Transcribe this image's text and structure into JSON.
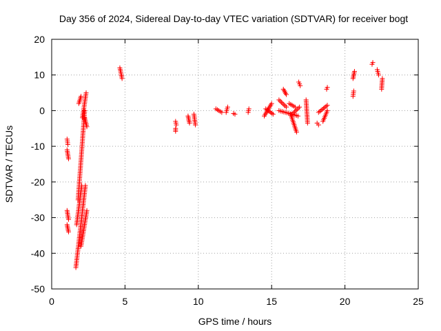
{
  "chart_data": {
    "type": "scatter",
    "title": "Day 356 of 2024, Sidereal Day-to-day VTEC variation (SDTVAR) for receiver bogt",
    "xlabel": "GPS time / hours",
    "ylabel": "SDTVAR / TECUs",
    "xlim": [
      0,
      25
    ],
    "ylim": [
      -50,
      20
    ],
    "xticks": [
      0,
      5,
      10,
      15,
      20,
      25
    ],
    "yticks": [
      -50,
      -40,
      -30,
      -20,
      -10,
      0,
      10,
      20
    ],
    "grid": true,
    "marker": "+",
    "color": "#ff0000",
    "segments": [
      {
        "x": [
          1.05,
          1.15
        ],
        "y": [
          -32.0,
          -34.0
        ]
      },
      {
        "x": [
          1.05,
          1.15
        ],
        "y": [
          -28.0,
          -30.5
        ]
      },
      {
        "x": [
          1.05,
          1.15
        ],
        "y": [
          -11.0,
          -13.5
        ]
      },
      {
        "x": [
          1.05,
          1.1
        ],
        "y": [
          -8.0,
          -9.5
        ]
      },
      {
        "x": [
          1.65,
          2.3
        ],
        "y": [
          -44.0,
          -21.0
        ]
      },
      {
        "x": [
          1.7,
          2.05
        ],
        "y": [
          -32.0,
          -21.0
        ]
      },
      {
        "x": [
          1.8,
          2.25
        ],
        "y": [
          -25.0,
          0.0
        ]
      },
      {
        "x": [
          1.85,
          2.0
        ],
        "y": [
          2.0,
          4.0
        ]
      },
      {
        "x": [
          2.1,
          2.35
        ],
        "y": [
          -2.0,
          5.0
        ]
      },
      {
        "x": [
          2.25,
          2.4
        ],
        "y": [
          -2.0,
          -4.5
        ]
      },
      {
        "x": [
          2.0,
          2.4
        ],
        "y": [
          -38.0,
          -28.0
        ]
      },
      {
        "x": [
          4.65,
          4.8
        ],
        "y": [
          12.0,
          9.0
        ]
      },
      {
        "x": [
          8.45,
          8.5
        ],
        "y": [
          -3.0,
          -4.0
        ]
      },
      {
        "x": [
          8.45,
          8.45
        ],
        "y": [
          -5.0,
          -5.8
        ]
      },
      {
        "x": [
          9.3,
          9.4
        ],
        "y": [
          -1.5,
          -3.5
        ]
      },
      {
        "x": [
          9.7,
          9.8
        ],
        "y": [
          -1.0,
          -4.0
        ]
      },
      {
        "x": [
          11.2,
          11.6
        ],
        "y": [
          0.5,
          -0.5
        ]
      },
      {
        "x": [
          11.9,
          12.0
        ],
        "y": [
          -0.5,
          1.0
        ]
      },
      {
        "x": [
          12.4,
          12.5
        ],
        "y": [
          -0.8,
          -1.0
        ]
      },
      {
        "x": [
          13.4,
          13.45
        ],
        "y": [
          -0.5,
          0.5
        ]
      },
      {
        "x": [
          14.5,
          15.0
        ],
        "y": [
          -1.5,
          2.0
        ]
      },
      {
        "x": [
          14.6,
          15.1
        ],
        "y": [
          0.5,
          -1.0
        ]
      },
      {
        "x": [
          15.5,
          16.0
        ],
        "y": [
          3.0,
          1.0
        ]
      },
      {
        "x": [
          15.5,
          16.8
        ],
        "y": [
          0.0,
          -1.5
        ]
      },
      {
        "x": [
          15.8,
          16.0
        ],
        "y": [
          6.0,
          4.5
        ]
      },
      {
        "x": [
          16.2,
          16.6
        ],
        "y": [
          2.0,
          1.0
        ]
      },
      {
        "x": [
          16.3,
          16.7
        ],
        "y": [
          -1.0,
          -6.0
        ]
      },
      {
        "x": [
          16.4,
          16.9
        ],
        "y": [
          -1.0,
          1.0
        ]
      },
      {
        "x": [
          16.85,
          16.95
        ],
        "y": [
          8.0,
          7.0
        ]
      },
      {
        "x": [
          17.35,
          17.45
        ],
        "y": [
          3.0,
          -3.5
        ]
      },
      {
        "x": [
          18.1,
          18.2
        ],
        "y": [
          -3.5,
          -4.0
        ]
      },
      {
        "x": [
          18.2,
          18.8
        ],
        "y": [
          -0.5,
          1.5
        ]
      },
      {
        "x": [
          18.5,
          18.8
        ],
        "y": [
          -3.0,
          0.0
        ]
      },
      {
        "x": [
          18.75,
          18.8
        ],
        "y": [
          6.0,
          6.5
        ]
      },
      {
        "x": [
          20.55,
          20.65
        ],
        "y": [
          9.0,
          11.0
        ]
      },
      {
        "x": [
          20.55,
          20.6
        ],
        "y": [
          4.0,
          5.5
        ]
      },
      {
        "x": [
          21.85,
          21.9
        ],
        "y": [
          13.0,
          13.5
        ]
      },
      {
        "x": [
          22.2,
          22.3
        ],
        "y": [
          11.5,
          10.0
        ]
      },
      {
        "x": [
          22.5,
          22.55
        ],
        "y": [
          6.0,
          9.0
        ]
      }
    ]
  }
}
